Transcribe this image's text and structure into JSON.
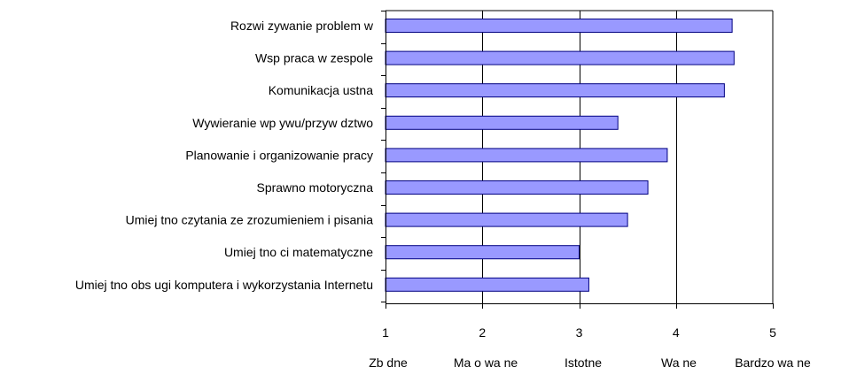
{
  "chart_data": {
    "type": "bar",
    "orientation": "horizontal",
    "title": "",
    "xlabel": "",
    "ylabel": "",
    "categories": [
      "Rozwi  zywanie problem  w",
      "Wsp   praca w zespole",
      "Komunikacja ustna",
      "Wywieranie wp ywu/przyw  dztwo",
      "Planowanie i organizowanie pracy",
      "Sprawno     motoryczna",
      "Umiej  tno     czytania ze zrozumieniem i pisania",
      "Umiej  tno  ci matematyczne",
      "Umiej  tno     obs ugi komputera i wykorzystania Internetu"
    ],
    "values": [
      4.58,
      4.6,
      4.5,
      3.4,
      3.91,
      3.71,
      3.5,
      3.0,
      3.1
    ],
    "xlim": [
      1,
      5
    ],
    "xticks": [
      1,
      2,
      3,
      4,
      5
    ],
    "x_tick_labels": [
      "1",
      "2",
      "3",
      "4",
      "5"
    ],
    "scale_labels": [
      "Zb  dne",
      "Ma o wa  ne",
      "Istotne",
      "Wa  ne",
      "Bardzo wa  ne"
    ],
    "grid": "vertical",
    "legend": "none",
    "bar_color": "#9999ff",
    "bar_edge_color": "#000080",
    "grid_color": "#000000"
  }
}
